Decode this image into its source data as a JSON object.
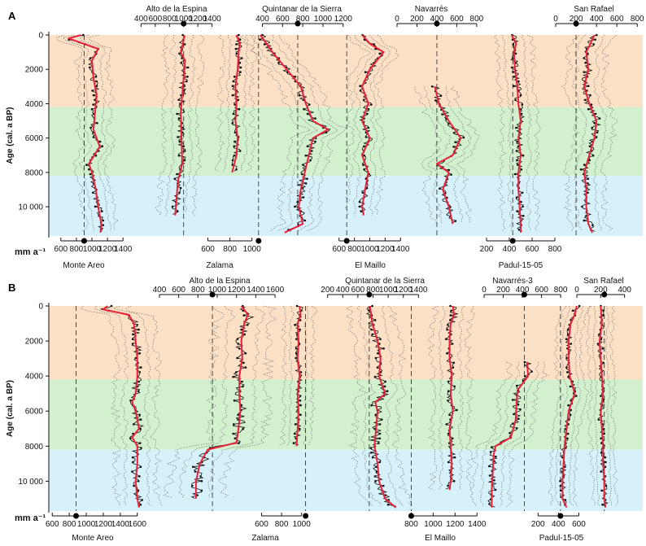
{
  "chart_data": [
    {
      "panel": "A",
      "type": "line",
      "ylabel": "Age (cal. a BP)",
      "unit_label": "mm a⁻¹",
      "yticks": [
        "0",
        "2000",
        "4000",
        "6000",
        "8000",
        "10 000"
      ],
      "bands": [
        {
          "from": 0,
          "to": 4200,
          "color": "#fbe0c6"
        },
        {
          "from": 4200,
          "to": 8200,
          "color": "#d2efce"
        },
        {
          "from": 8200,
          "to": 11700,
          "color": "#d6f1fa"
        }
      ],
      "series": [
        {
          "name": "Monte Areo",
          "axis": "bottom",
          "ticks": [
            "600",
            "800",
            "1000",
            "1200",
            "1400"
          ],
          "reference": 900,
          "ages": [
            0,
            200,
            800,
            1500,
            2500,
            3500,
            4500,
            5500,
            6500,
            7500,
            8000,
            9000,
            10000,
            11000,
            11500
          ],
          "values": [
            860,
            700,
            1080,
            1000,
            1020,
            1060,
            1040,
            1020,
            1100,
            960,
            1000,
            1050,
            1080,
            1120,
            1110
          ]
        },
        {
          "name": "Alto de la Espina",
          "axis": "top",
          "ticks": [
            "400",
            "600",
            "800",
            "1000",
            "1200",
            "1400"
          ],
          "reference": 1000,
          "ages": [
            0,
            500,
            1000,
            1500,
            2000,
            3000,
            4500,
            6000,
            7500,
            8500,
            9500,
            10500
          ],
          "values": [
            1010,
            990,
            960,
            1020,
            1010,
            990,
            960,
            970,
            980,
            920,
            900,
            880
          ]
        },
        {
          "name": "Zalama",
          "axis": "bottom",
          "ticks": [
            "600",
            "800",
            "1000"
          ],
          "reference": 1060,
          "ages": [
            0,
            500,
            1000,
            2000,
            3000,
            4000,
            5000,
            6000,
            7000,
            8000
          ],
          "values": [
            860,
            890,
            880,
            870,
            850,
            860,
            850,
            870,
            860,
            820
          ]
        },
        {
          "name": "Quintanar de la Sierra",
          "axis": "top",
          "ticks": [
            "400",
            "600",
            "800",
            "1000",
            "1200"
          ],
          "reference": 750,
          "ages": [
            0,
            1000,
            2000,
            3000,
            4000,
            5000,
            5500,
            6000,
            7000,
            8000,
            9000,
            10000,
            11000,
            11500
          ],
          "values": [
            380,
            500,
            640,
            780,
            830,
            900,
            1050,
            900,
            860,
            820,
            780,
            760,
            800,
            620
          ]
        },
        {
          "name": "El Maillo",
          "axis": "bottom",
          "ticks": [
            "600",
            "800",
            "1000",
            "1200",
            "1400"
          ],
          "reference": 700,
          "ages": [
            0,
            500,
            1000,
            2000,
            3000,
            4000,
            5000,
            6000,
            7000,
            8000,
            9000,
            10000,
            10500
          ],
          "values": [
            900,
            1000,
            1180,
            1000,
            900,
            980,
            900,
            1000,
            900,
            980,
            940,
            900,
            920
          ]
        },
        {
          "name": "Navarrés",
          "axis": "top",
          "ticks": [
            "0",
            "200",
            "400",
            "600",
            "800"
          ],
          "reference": 400,
          "ages": [
            3000,
            4000,
            5000,
            6000,
            7000,
            7500,
            8000,
            9000,
            10000,
            11000
          ],
          "values": [
            380,
            420,
            520,
            640,
            560,
            400,
            520,
            460,
            520,
            560
          ]
        },
        {
          "name": "Padul-15-05",
          "axis": "bottom",
          "ticks": [
            "200",
            "400",
            "600",
            "800"
          ],
          "reference": 430,
          "ages": [
            0,
            500,
            1000,
            2000,
            3000,
            4000,
            5000,
            6000,
            7000,
            8000,
            9000,
            10000,
            11000,
            11500
          ],
          "values": [
            420,
            460,
            440,
            450,
            470,
            480,
            500,
            480,
            500,
            480,
            480,
            490,
            500,
            500
          ]
        },
        {
          "name": "San Rafael",
          "axis": "top",
          "ticks": [
            "0",
            "200",
            "400",
            "600",
            "800"
          ],
          "reference": 200,
          "ages": [
            0,
            1000,
            2000,
            3000,
            4000,
            5000,
            6000,
            7000,
            8000,
            9000,
            10000,
            11000,
            11500
          ],
          "values": [
            380,
            300,
            320,
            280,
            330,
            400,
            380,
            330,
            280,
            300,
            300,
            320,
            360
          ]
        }
      ]
    },
    {
      "panel": "B",
      "type": "line",
      "ylabel": "Age (cal. a BP)",
      "unit_label": "mm a⁻¹",
      "yticks": [
        "0",
        "2000",
        "4000",
        "6000",
        "8000",
        "10 000"
      ],
      "bands": [
        {
          "from": 0,
          "to": 4200,
          "color": "#fbe0c6"
        },
        {
          "from": 4200,
          "to": 8200,
          "color": "#d2efce"
        },
        {
          "from": 8200,
          "to": 11700,
          "color": "#d6f1fa"
        }
      ],
      "series": [
        {
          "name": "Monte Areo",
          "axis": "bottom",
          "ticks": [
            "600",
            "800",
            "1000",
            "1200",
            "1400",
            "1600"
          ],
          "reference": 880,
          "ages": [
            0,
            200,
            500,
            1000,
            2000,
            3000,
            4000,
            5000,
            5500,
            6000,
            7000,
            7500,
            8000,
            9000,
            10000,
            11000,
            11500
          ],
          "values": [
            1250,
            1200,
            1500,
            1560,
            1580,
            1600,
            1600,
            1580,
            1540,
            1580,
            1620,
            1540,
            1600,
            1600,
            1580,
            1600,
            1620
          ]
        },
        {
          "name": "Alto de la Espina",
          "axis": "top",
          "ticks": [
            "400",
            "600",
            "800",
            "1000",
            "1200",
            "1400",
            "1600"
          ],
          "reference": 950,
          "ages": [
            0,
            500,
            1000,
            2000,
            3000,
            4000,
            5000,
            6000,
            7000,
            7800,
            8200,
            9000,
            10000,
            11000
          ],
          "values": [
            1250,
            1320,
            1280,
            1250,
            1260,
            1230,
            1230,
            1240,
            1220,
            1200,
            900,
            820,
            780,
            780
          ]
        },
        {
          "name": "Zalama",
          "axis": "bottom",
          "ticks": [
            "600",
            "800",
            "1000"
          ],
          "reference": 1040,
          "ages": [
            0,
            500,
            1000,
            2000,
            3000,
            4000,
            5000,
            6000,
            7000,
            8000
          ],
          "values": [
            980,
            990,
            960,
            970,
            960,
            980,
            960,
            970,
            960,
            950
          ]
        },
        {
          "name": "Quintanar de la Sierra",
          "axis": "top",
          "ticks": [
            "200",
            "400",
            "600",
            "800",
            "1000",
            "1200",
            "1400"
          ],
          "reference": 750,
          "ages": [
            0,
            1000,
            2000,
            3000,
            4000,
            5000,
            5500,
            6000,
            7000,
            8000,
            9000,
            10000,
            11000,
            11500
          ],
          "values": [
            760,
            790,
            860,
            900,
            880,
            960,
            830,
            860,
            840,
            820,
            860,
            880,
            960,
            1100
          ]
        },
        {
          "name": "El Maillo",
          "axis": "bottom",
          "ticks": [
            "800",
            "1000",
            "1200",
            "1400"
          ],
          "reference": 800,
          "ages": [
            0,
            500,
            1000,
            2000,
            3000,
            4000,
            5000,
            6000,
            7000,
            8000,
            9000,
            10000,
            10500
          ],
          "values": [
            1180,
            1190,
            1160,
            1150,
            1150,
            1170,
            1160,
            1180,
            1150,
            1160,
            1170,
            1160,
            1150
          ]
        },
        {
          "name": "Navarrés-3",
          "axis": "top",
          "ticks": [
            "0",
            "200",
            "400",
            "600",
            "800"
          ],
          "reference": 420,
          "ages": [
            3200,
            4000,
            4800,
            5500,
            6500,
            7500,
            8000,
            8500,
            9500,
            10500,
            11500
          ],
          "values": [
            450,
            460,
            350,
            340,
            330,
            280,
            120,
            100,
            90,
            80,
            80
          ]
        },
        {
          "name": "Padul-15-05",
          "axis": "bottom",
          "ticks": [
            "200",
            "400",
            "600"
          ],
          "reference": 420,
          "ages": [
            0,
            500,
            1000,
            2000,
            3000,
            4000,
            5000,
            6000,
            7000,
            8000,
            9000,
            10000,
            11000,
            11500
          ],
          "values": [
            580,
            560,
            520,
            500,
            500,
            510,
            560,
            500,
            480,
            460,
            450,
            440,
            440,
            480
          ]
        },
        {
          "name": "San Rafael",
          "axis": "top",
          "ticks": [
            "0",
            "200",
            "400"
          ],
          "reference": 230,
          "ages": [
            0,
            1000,
            2000,
            3000,
            4000,
            5000,
            6000,
            7000,
            8000,
            9000,
            10000,
            11000,
            11500
          ],
          "values": [
            200,
            210,
            190,
            200,
            210,
            220,
            200,
            210,
            220,
            220,
            230,
            230,
            240
          ]
        }
      ]
    }
  ]
}
